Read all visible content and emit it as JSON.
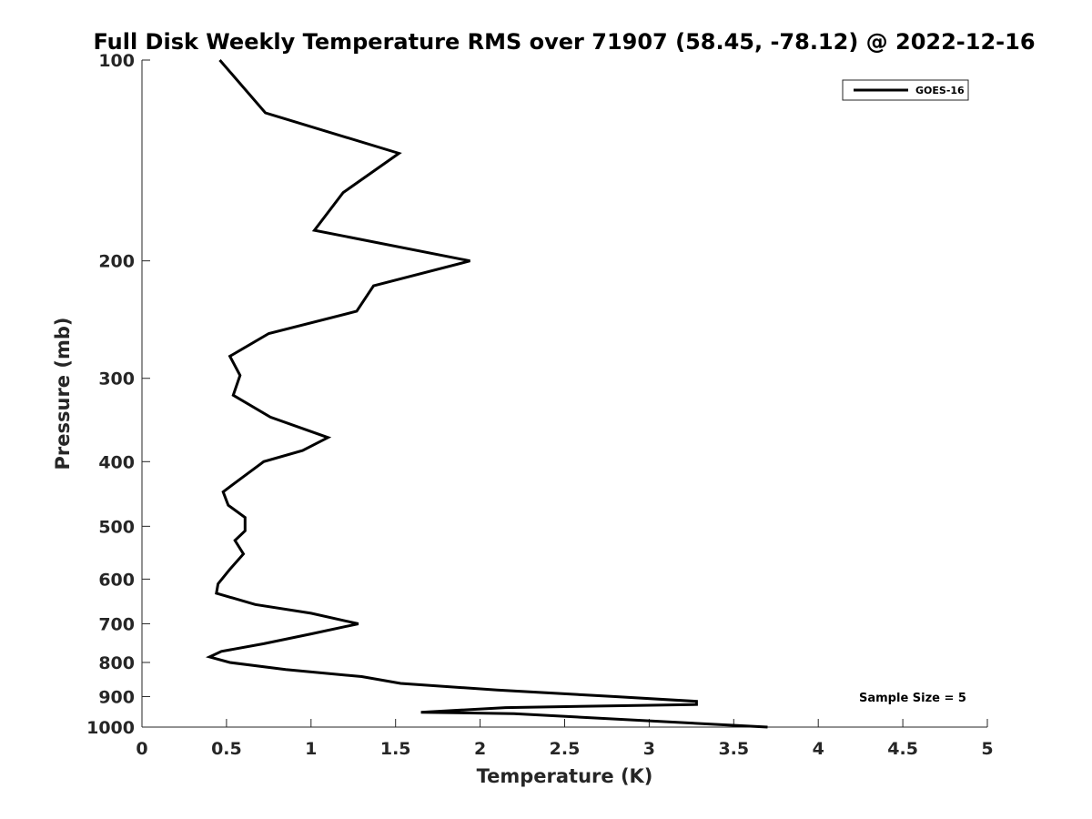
{
  "chart_data": {
    "type": "line",
    "title": "Full Disk Weekly Temperature RMS over 71907 (58.45, -78.12) @ 2022-12-16",
    "xlabel": "Temperature (K)",
    "ylabel": "Pressure (mb)",
    "xlim": [
      0,
      5
    ],
    "ylim": [
      100,
      1000
    ],
    "y_scale": "log",
    "y_reversed": true,
    "grid": false,
    "legend_position": "top-right",
    "x_ticks": [
      0,
      0.5,
      1,
      1.5,
      2,
      2.5,
      3,
      3.5,
      4,
      4.5,
      5
    ],
    "x_tick_labels": [
      "0",
      "0.5",
      "1",
      "1.5",
      "2",
      "2.5",
      "3",
      "3.5",
      "4",
      "4.5",
      "5"
    ],
    "y_ticks": [
      100,
      200,
      300,
      400,
      500,
      600,
      700,
      800,
      900,
      1000
    ],
    "y_tick_labels": [
      "100",
      "200",
      "300",
      "400",
      "500",
      "600",
      "700",
      "800",
      "900",
      "1000"
    ],
    "annotation": "Sample Size = 5",
    "series": [
      {
        "name": "GOES-16",
        "color": "#000000",
        "points": [
          [
            0.46,
            100
          ],
          [
            0.73,
            120
          ],
          [
            1.52,
            138
          ],
          [
            1.19,
            158
          ],
          [
            1.02,
            180
          ],
          [
            1.94,
            200
          ],
          [
            1.37,
            218
          ],
          [
            1.27,
            238
          ],
          [
            0.75,
            257
          ],
          [
            0.52,
            278
          ],
          [
            0.58,
            297
          ],
          [
            0.54,
            318
          ],
          [
            0.76,
            343
          ],
          [
            1.1,
            368
          ],
          [
            0.95,
            385
          ],
          [
            0.72,
            400
          ],
          [
            0.58,
            425
          ],
          [
            0.48,
            444
          ],
          [
            0.51,
            465
          ],
          [
            0.61,
            485
          ],
          [
            0.61,
            508
          ],
          [
            0.55,
            525
          ],
          [
            0.6,
            550
          ],
          [
            0.52,
            580
          ],
          [
            0.45,
            610
          ],
          [
            0.44,
            630
          ],
          [
            0.67,
            655
          ],
          [
            1.0,
            675
          ],
          [
            1.28,
            700
          ],
          [
            1.0,
            725
          ],
          [
            0.72,
            750
          ],
          [
            0.47,
            770
          ],
          [
            0.4,
            785
          ],
          [
            0.52,
            800
          ],
          [
            0.85,
            820
          ],
          [
            1.3,
            840
          ],
          [
            1.53,
            860
          ],
          [
            2.1,
            880
          ],
          [
            2.8,
            900
          ],
          [
            3.28,
            915
          ],
          [
            3.28,
            925
          ],
          [
            2.15,
            935
          ],
          [
            1.65,
            950
          ],
          [
            2.2,
            955
          ],
          [
            3.7,
            1000
          ]
        ]
      }
    ]
  }
}
